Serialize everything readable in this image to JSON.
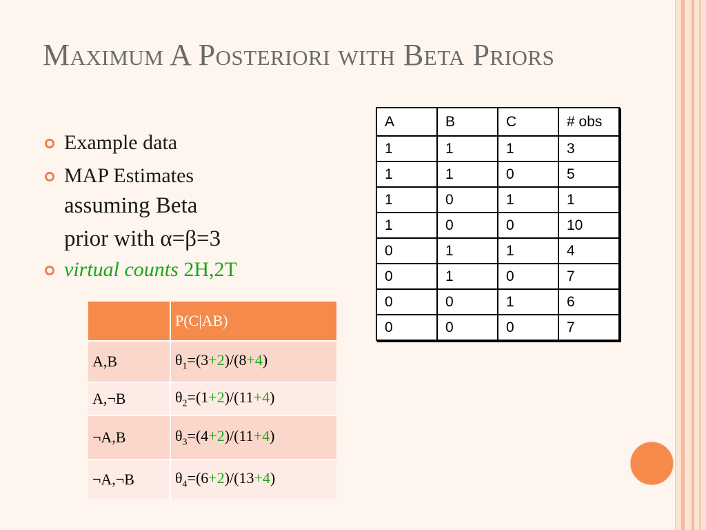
{
  "slide": {
    "title": "Maximum A Posteriori with Beta Priors",
    "bullets": {
      "b1": "Example data",
      "b2_line1": "MAP Estimates",
      "b2_line2": "assuming Beta",
      "b2_line3": "prior with α=β=3",
      "b3_italic": "virtual counts",
      "b3_rest": " 2H,2T"
    }
  },
  "obs_table": {
    "headers": [
      "A",
      "B",
      "C",
      "# obs"
    ],
    "rows": [
      [
        "1",
        "1",
        "1",
        "3"
      ],
      [
        "1",
        "1",
        "0",
        "5"
      ],
      [
        "1",
        "0",
        "1",
        "1"
      ],
      [
        "1",
        "0",
        "0",
        "10"
      ],
      [
        "0",
        "1",
        "1",
        "4"
      ],
      [
        "0",
        "1",
        "0",
        "7"
      ],
      [
        "0",
        "0",
        "1",
        "6"
      ],
      [
        "0",
        "0",
        "0",
        "7"
      ]
    ]
  },
  "map_table": {
    "header": "P(C|AB)",
    "rows": [
      {
        "cond": "A,B",
        "sym": "θ",
        "sub": "1",
        "eq": "=(3",
        "plus1": "+2",
        "mid": ")/(8",
        "plus2": "+4",
        "end": ")"
      },
      {
        "cond": "A,¬B",
        "sym": "θ",
        "sub": "2",
        "eq": "=(1",
        "plus1": "+2",
        "mid": ")/(11",
        "plus2": "+4",
        "end": ")"
      },
      {
        "cond": "¬A,B",
        "sym": "θ",
        "sub": "3",
        "eq": "=(4",
        "plus1": "+2",
        "mid": ")/(11",
        "plus2": "+4",
        "end": ")"
      },
      {
        "cond": "¬A,¬B",
        "sym": "θ",
        "sub": "4",
        "eq": "=(6",
        "plus1": "+2",
        "mid": ")/(13",
        "plus2": "+4",
        "end": ")"
      }
    ]
  },
  "colors": {
    "accent": "#f58a4b",
    "title": "#6a6a6a",
    "virtual_counts": "#1aa61a"
  }
}
